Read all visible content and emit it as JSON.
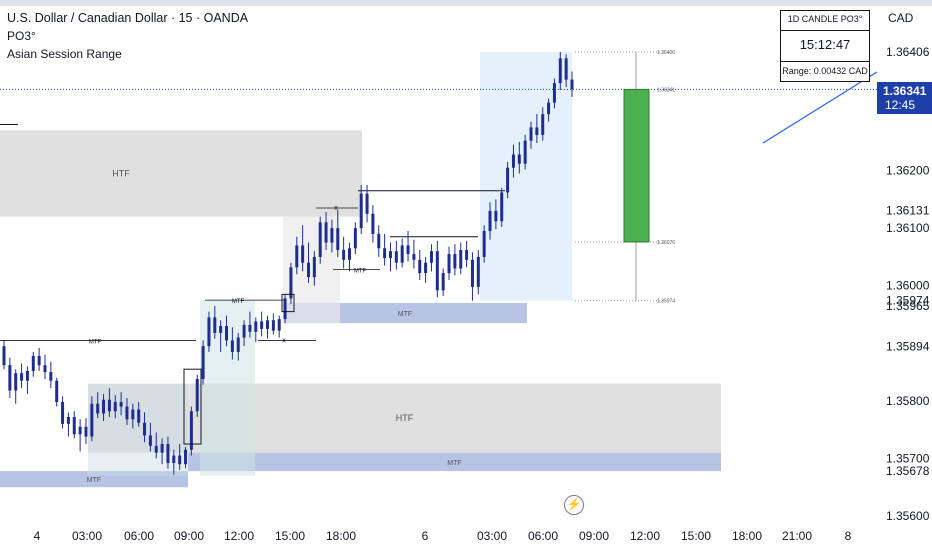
{
  "header": {
    "title": "U.S. Dollar / Canadian Dollar · 15 · OANDA",
    "indicator_1": "PO3°",
    "indicator_2": "Asian Session Range"
  },
  "currency_label": "CAD",
  "info_box": {
    "title": "1D CANDLE PO3°",
    "countdown": "15:12:47",
    "range": "Range: 0.00432 CAD"
  },
  "price_tag": {
    "value": "1.36341",
    "time": "12:45"
  },
  "icons": {
    "replay": "flash-icon"
  },
  "colors": {
    "candle": "#1e2d8f",
    "big_candle_fill": "#4caf50",
    "price_tag_bg": "#1e3fa8",
    "htf_zone": "#d6d6d6",
    "mtf_zone": "#9fb0da",
    "session_fill": "#d8ebf8",
    "trendline": "#2962ff"
  },
  "chart_data": {
    "type": "candlestick",
    "x_tick_labels": [
      "4",
      "03:00",
      "06:00",
      "09:00",
      "12:00",
      "15:00",
      "18:00",
      "6",
      "03:00",
      "06:00",
      "09:00",
      "12:00",
      "15:00",
      "18:00",
      "21:00",
      "8"
    ],
    "y_tick_labels": [
      "1.36406",
      "1.36200",
      "1.36131",
      "1.36100",
      "1.36000",
      "1.35974",
      "1.35965",
      "1.35894",
      "1.35800",
      "1.35700",
      "1.35678",
      "1.35600"
    ],
    "ylim": [
      1.356,
      1.3648
    ],
    "last_price": 1.36341,
    "candle_levels": [
      {
        "label": "1.36406",
        "value": 1.36406
      },
      {
        "label": "1.36341",
        "value": 1.36341
      },
      {
        "label": "1.36076",
        "value": 1.36076
      },
      {
        "label": "1.35974",
        "value": 1.35974
      }
    ],
    "zones": [
      {
        "label": "HTF",
        "type": "HTF",
        "y_top": 1.3627,
        "y_bottom": 1.3612
      },
      {
        "label": "HTF",
        "type": "HTF",
        "y_top": 1.3583,
        "y_bottom": 1.3571
      },
      {
        "label": "MTF",
        "type": "MTF",
        "y_top": 1.3597,
        "y_bottom": 1.35935
      },
      {
        "label": "MTF",
        "type": "MTF",
        "y_top": 1.3571,
        "y_bottom": 1.35678
      },
      {
        "label": "MTF",
        "type": "MTF",
        "y_top": 1.35678,
        "y_bottom": 1.3565
      }
    ],
    "level_labels": [
      {
        "label": "MTF",
        "value": 1.35905
      },
      {
        "label": "MTF",
        "value": 1.36028
      },
      {
        "label": "MTF",
        "value": 1.35975
      },
      {
        "label": "x",
        "value": 1.36135
      },
      {
        "label": "x",
        "value": 1.35905
      }
    ],
    "candles": [
      {
        "o": 1.35895,
        "h": 1.35905,
        "l": 1.35855,
        "c": 1.35862
      },
      {
        "o": 1.35862,
        "h": 1.35875,
        "l": 1.35805,
        "c": 1.35818
      },
      {
        "o": 1.35818,
        "h": 1.35855,
        "l": 1.35795,
        "c": 1.35848
      },
      {
        "o": 1.35848,
        "h": 1.35865,
        "l": 1.35822,
        "c": 1.35835
      },
      {
        "o": 1.35835,
        "h": 1.3586,
        "l": 1.35812,
        "c": 1.35852
      },
      {
        "o": 1.35852,
        "h": 1.35885,
        "l": 1.35842,
        "c": 1.35878
      },
      {
        "o": 1.35878,
        "h": 1.35892,
        "l": 1.35852,
        "c": 1.35862
      },
      {
        "o": 1.35862,
        "h": 1.3588,
        "l": 1.35838,
        "c": 1.3585
      },
      {
        "o": 1.3585,
        "h": 1.35868,
        "l": 1.35822,
        "c": 1.35835
      },
      {
        "o": 1.35835,
        "h": 1.3584,
        "l": 1.3579,
        "c": 1.35798
      },
      {
        "o": 1.35798,
        "h": 1.35808,
        "l": 1.35752,
        "c": 1.3576
      },
      {
        "o": 1.3576,
        "h": 1.3578,
        "l": 1.35738,
        "c": 1.35772
      },
      {
        "o": 1.35772,
        "h": 1.35782,
        "l": 1.35735,
        "c": 1.35742
      },
      {
        "o": 1.35742,
        "h": 1.35768,
        "l": 1.35712,
        "c": 1.35755
      },
      {
        "o": 1.35755,
        "h": 1.3577,
        "l": 1.35725,
        "c": 1.35738
      },
      {
        "o": 1.35738,
        "h": 1.35808,
        "l": 1.3573,
        "c": 1.35795
      },
      {
        "o": 1.35795,
        "h": 1.35815,
        "l": 1.3577,
        "c": 1.35778
      },
      {
        "o": 1.35778,
        "h": 1.35812,
        "l": 1.35765,
        "c": 1.35802
      },
      {
        "o": 1.35802,
        "h": 1.35822,
        "l": 1.35772,
        "c": 1.35782
      },
      {
        "o": 1.35782,
        "h": 1.3581,
        "l": 1.3577,
        "c": 1.35798
      },
      {
        "o": 1.35798,
        "h": 1.35815,
        "l": 1.35775,
        "c": 1.3579
      },
      {
        "o": 1.3579,
        "h": 1.35805,
        "l": 1.35758,
        "c": 1.35768
      },
      {
        "o": 1.35768,
        "h": 1.35795,
        "l": 1.35752,
        "c": 1.35785
      },
      {
        "o": 1.35785,
        "h": 1.35798,
        "l": 1.35755,
        "c": 1.35762
      },
      {
        "o": 1.35762,
        "h": 1.3578,
        "l": 1.35728,
        "c": 1.3574
      },
      {
        "o": 1.3574,
        "h": 1.35762,
        "l": 1.35712,
        "c": 1.35722
      },
      {
        "o": 1.35722,
        "h": 1.35745,
        "l": 1.357,
        "c": 1.3571
      },
      {
        "o": 1.3571,
        "h": 1.35735,
        "l": 1.3569,
        "c": 1.35725
      },
      {
        "o": 1.35725,
        "h": 1.35738,
        "l": 1.35682,
        "c": 1.35692
      },
      {
        "o": 1.35692,
        "h": 1.35715,
        "l": 1.35672,
        "c": 1.35705
      },
      {
        "o": 1.35705,
        "h": 1.35725,
        "l": 1.3568,
        "c": 1.3569
      },
      {
        "o": 1.3569,
        "h": 1.3572,
        "l": 1.35683,
        "c": 1.35715
      },
      {
        "o": 1.35715,
        "h": 1.3579,
        "l": 1.35705,
        "c": 1.35782
      },
      {
        "o": 1.35782,
        "h": 1.35845,
        "l": 1.35772,
        "c": 1.35838
      },
      {
        "o": 1.35838,
        "h": 1.35905,
        "l": 1.35828,
        "c": 1.35895
      },
      {
        "o": 1.35895,
        "h": 1.35955,
        "l": 1.35885,
        "c": 1.35945
      },
      {
        "o": 1.35945,
        "h": 1.35965,
        "l": 1.35908,
        "c": 1.35918
      },
      {
        "o": 1.35918,
        "h": 1.3594,
        "l": 1.35885,
        "c": 1.3593
      },
      {
        "o": 1.3593,
        "h": 1.35948,
        "l": 1.35895,
        "c": 1.35905
      },
      {
        "o": 1.35905,
        "h": 1.35928,
        "l": 1.35872,
        "c": 1.35885
      },
      {
        "o": 1.35885,
        "h": 1.35918,
        "l": 1.3587,
        "c": 1.3591
      },
      {
        "o": 1.3591,
        "h": 1.3594,
        "l": 1.35895,
        "c": 1.35932
      },
      {
        "o": 1.35932,
        "h": 1.35955,
        "l": 1.3591,
        "c": 1.3592
      },
      {
        "o": 1.3592,
        "h": 1.35945,
        "l": 1.35902,
        "c": 1.35938
      },
      {
        "o": 1.35938,
        "h": 1.35955,
        "l": 1.35912,
        "c": 1.35925
      },
      {
        "o": 1.35925,
        "h": 1.35948,
        "l": 1.35908,
        "c": 1.3594
      },
      {
        "o": 1.3594,
        "h": 1.35952,
        "l": 1.35915,
        "c": 1.35922
      },
      {
        "o": 1.35922,
        "h": 1.35948,
        "l": 1.3591,
        "c": 1.35942
      },
      {
        "o": 1.35942,
        "h": 1.35985,
        "l": 1.35935,
        "c": 1.35978
      },
      {
        "o": 1.35978,
        "h": 1.3604,
        "l": 1.35968,
        "c": 1.36032
      },
      {
        "o": 1.36032,
        "h": 1.36085,
        "l": 1.3602,
        "c": 1.3607
      },
      {
        "o": 1.3607,
        "h": 1.36105,
        "l": 1.36025,
        "c": 1.3604
      },
      {
        "o": 1.3604,
        "h": 1.36075,
        "l": 1.36005,
        "c": 1.36015
      },
      {
        "o": 1.36015,
        "h": 1.3606,
        "l": 1.36,
        "c": 1.3605
      },
      {
        "o": 1.3605,
        "h": 1.3612,
        "l": 1.36038,
        "c": 1.3611
      },
      {
        "o": 1.3611,
        "h": 1.36128,
        "l": 1.36062,
        "c": 1.36075
      },
      {
        "o": 1.36075,
        "h": 1.36115,
        "l": 1.36058,
        "c": 1.361
      },
      {
        "o": 1.361,
        "h": 1.36132,
        "l": 1.3605,
        "c": 1.36062
      },
      {
        "o": 1.36062,
        "h": 1.36085,
        "l": 1.3603,
        "c": 1.36045
      },
      {
        "o": 1.36045,
        "h": 1.36075,
        "l": 1.36025,
        "c": 1.36065
      },
      {
        "o": 1.36065,
        "h": 1.3611,
        "l": 1.36055,
        "c": 1.361
      },
      {
        "o": 1.361,
        "h": 1.36175,
        "l": 1.3609,
        "c": 1.3616
      },
      {
        "o": 1.3616,
        "h": 1.36175,
        "l": 1.3611,
        "c": 1.36125
      },
      {
        "o": 1.36125,
        "h": 1.3614,
        "l": 1.36075,
        "c": 1.3609
      },
      {
        "o": 1.3609,
        "h": 1.36105,
        "l": 1.3605,
        "c": 1.36065
      },
      {
        "o": 1.36065,
        "h": 1.3609,
        "l": 1.36035,
        "c": 1.36048
      },
      {
        "o": 1.36048,
        "h": 1.36075,
        "l": 1.36025,
        "c": 1.3606
      },
      {
        "o": 1.3606,
        "h": 1.36078,
        "l": 1.36028,
        "c": 1.3604
      },
      {
        "o": 1.3604,
        "h": 1.36082,
        "l": 1.36032,
        "c": 1.3607
      },
      {
        "o": 1.3607,
        "h": 1.36095,
        "l": 1.36042,
        "c": 1.36055
      },
      {
        "o": 1.36055,
        "h": 1.3608,
        "l": 1.3603,
        "c": 1.36045
      },
      {
        "o": 1.36045,
        "h": 1.36062,
        "l": 1.3601,
        "c": 1.36022
      },
      {
        "o": 1.36022,
        "h": 1.3605,
        "l": 1.36005,
        "c": 1.3604
      },
      {
        "o": 1.3604,
        "h": 1.36072,
        "l": 1.36025,
        "c": 1.3606
      },
      {
        "o": 1.3606,
        "h": 1.36078,
        "l": 1.3598,
        "c": 1.35992
      },
      {
        "o": 1.35992,
        "h": 1.3603,
        "l": 1.35982,
        "c": 1.36022
      },
      {
        "o": 1.36022,
        "h": 1.36068,
        "l": 1.3601,
        "c": 1.36055
      },
      {
        "o": 1.36055,
        "h": 1.36072,
        "l": 1.36018,
        "c": 1.3603
      },
      {
        "o": 1.3603,
        "h": 1.36075,
        "l": 1.3602,
        "c": 1.36062
      },
      {
        "o": 1.36062,
        "h": 1.36078,
        "l": 1.36032,
        "c": 1.36045
      },
      {
        "o": 1.36045,
        "h": 1.36058,
        "l": 1.35974,
        "c": 1.35998
      },
      {
        "o": 1.35998,
        "h": 1.36062,
        "l": 1.35985,
        "c": 1.3605
      },
      {
        "o": 1.3605,
        "h": 1.36105,
        "l": 1.3604,
        "c": 1.36095
      },
      {
        "o": 1.36095,
        "h": 1.36145,
        "l": 1.3608,
        "c": 1.3613
      },
      {
        "o": 1.3613,
        "h": 1.3615,
        "l": 1.36098,
        "c": 1.36112
      },
      {
        "o": 1.36112,
        "h": 1.3617,
        "l": 1.36102,
        "c": 1.36162
      },
      {
        "o": 1.36162,
        "h": 1.36215,
        "l": 1.36152,
        "c": 1.36205
      },
      {
        "o": 1.36205,
        "h": 1.36245,
        "l": 1.36188,
        "c": 1.36228
      },
      {
        "o": 1.36228,
        "h": 1.3625,
        "l": 1.36195,
        "c": 1.36212
      },
      {
        "o": 1.36212,
        "h": 1.36262,
        "l": 1.36202,
        "c": 1.36252
      },
      {
        "o": 1.36252,
        "h": 1.36285,
        "l": 1.36238,
        "c": 1.36275
      },
      {
        "o": 1.36275,
        "h": 1.36298,
        "l": 1.36248,
        "c": 1.36262
      },
      {
        "o": 1.36262,
        "h": 1.3631,
        "l": 1.36252,
        "c": 1.36298
      },
      {
        "o": 1.36298,
        "h": 1.36325,
        "l": 1.36285,
        "c": 1.36318
      },
      {
        "o": 1.36318,
        "h": 1.3636,
        "l": 1.36308,
        "c": 1.36352
      },
      {
        "o": 1.36352,
        "h": 1.36406,
        "l": 1.3634,
        "c": 1.36395
      },
      {
        "o": 1.36395,
        "h": 1.36402,
        "l": 1.36345,
        "c": 1.36358
      },
      {
        "o": 1.36358,
        "h": 1.36372,
        "l": 1.36328,
        "c": 1.36341
      }
    ],
    "daily_candle": {
      "o": 1.36076,
      "h": 1.36406,
      "l": 1.35974,
      "c": 1.36341
    }
  }
}
